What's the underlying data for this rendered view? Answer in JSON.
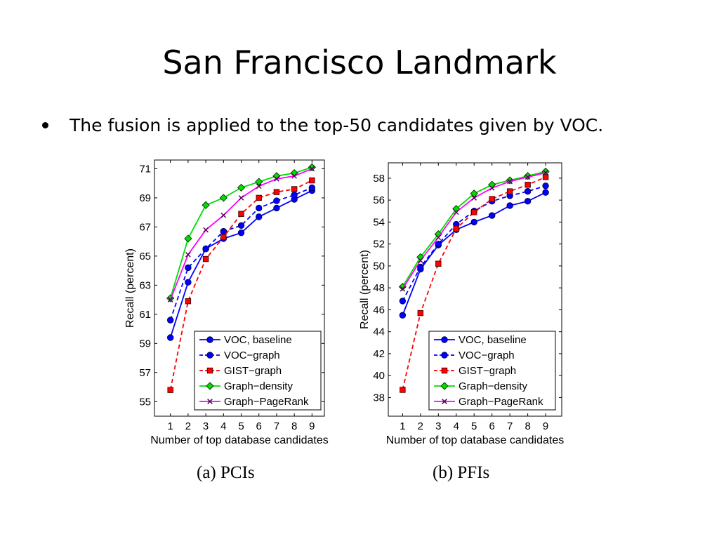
{
  "slide": {
    "title": "San Francisco Landmark",
    "bullet": "The fusion is applied to the top-50 candidates given by VOC."
  },
  "chart_data": [
    {
      "type": "line",
      "caption": "(a)  PCIs",
      "xlabel": "Number of top database candidates",
      "ylabel": "Recall (percent)",
      "x": [
        1,
        2,
        3,
        4,
        5,
        6,
        7,
        8,
        9
      ],
      "xlim": [
        0.1,
        9.7
      ],
      "ylim": [
        54,
        71.6
      ],
      "yticks": [
        55,
        57,
        59,
        61,
        63,
        65,
        67,
        69,
        71
      ],
      "grid": false,
      "legend": "bottom-right",
      "series": [
        {
          "name": "VOC, baseline",
          "color": "#0000ff",
          "dash": "solid",
          "marker": "circle",
          "values": [
            59.4,
            63.2,
            65.5,
            66.2,
            66.6,
            67.7,
            68.3,
            68.9,
            69.5
          ]
        },
        {
          "name": "VOC−graph",
          "color": "#0000ff",
          "dash": "dashed",
          "marker": "circle",
          "values": [
            60.6,
            64.2,
            65.5,
            66.7,
            67.1,
            68.3,
            68.8,
            69.2,
            69.7
          ]
        },
        {
          "name": "GIST−graph",
          "color": "#ff0000",
          "dash": "dashed",
          "marker": "square",
          "values": [
            55.8,
            61.9,
            64.8,
            66.3,
            67.9,
            69.0,
            69.4,
            69.6,
            70.2
          ]
        },
        {
          "name": "Graph−density",
          "color": "#00dd00",
          "dash": "solid",
          "marker": "diamond",
          "values": [
            62.1,
            66.2,
            68.5,
            69.0,
            69.7,
            70.1,
            70.5,
            70.7,
            71.1
          ]
        },
        {
          "name": "Graph−PageRank",
          "color": "#ff00ff",
          "dash": "solid",
          "marker": "x",
          "values": [
            62.0,
            65.1,
            66.8,
            67.8,
            69.0,
            69.8,
            70.3,
            70.5,
            71.0
          ]
        }
      ]
    },
    {
      "type": "line",
      "caption": "(b)  PFIs",
      "xlabel": "Number of top database candidates",
      "ylabel": "Recall (percent)",
      "x": [
        1,
        2,
        3,
        4,
        5,
        6,
        7,
        8,
        9
      ],
      "xlim": [
        0.2,
        9.9
      ],
      "ylim": [
        36.3,
        59.4
      ],
      "yticks": [
        38,
        40,
        42,
        44,
        46,
        48,
        50,
        52,
        54,
        56,
        58
      ],
      "grid": false,
      "legend": "bottom-right",
      "series": [
        {
          "name": "VOC, baseline",
          "color": "#0000ff",
          "dash": "solid",
          "marker": "circle",
          "values": [
            45.5,
            49.7,
            51.9,
            53.3,
            54.0,
            54.6,
            55.5,
            55.9,
            56.7
          ]
        },
        {
          "name": "VOC−graph",
          "color": "#0000ff",
          "dash": "dashed",
          "marker": "circle",
          "values": [
            46.8,
            49.9,
            52.0,
            53.8,
            55.0,
            55.9,
            56.4,
            56.8,
            57.3
          ]
        },
        {
          "name": "GIST−graph",
          "color": "#ff0000",
          "dash": "dashed",
          "marker": "square",
          "values": [
            38.7,
            45.7,
            50.2,
            53.4,
            54.9,
            56.1,
            56.8,
            57.4,
            58.1
          ]
        },
        {
          "name": "Graph−density",
          "color": "#00dd00",
          "dash": "solid",
          "marker": "diamond",
          "values": [
            48.1,
            50.8,
            52.9,
            55.2,
            56.6,
            57.4,
            57.8,
            58.2,
            58.6
          ]
        },
        {
          "name": "Graph−PageRank",
          "color": "#ff00ff",
          "dash": "solid",
          "marker": "x",
          "values": [
            47.9,
            50.5,
            52.6,
            54.9,
            56.2,
            57.1,
            57.7,
            58.1,
            58.5
          ]
        }
      ]
    }
  ]
}
